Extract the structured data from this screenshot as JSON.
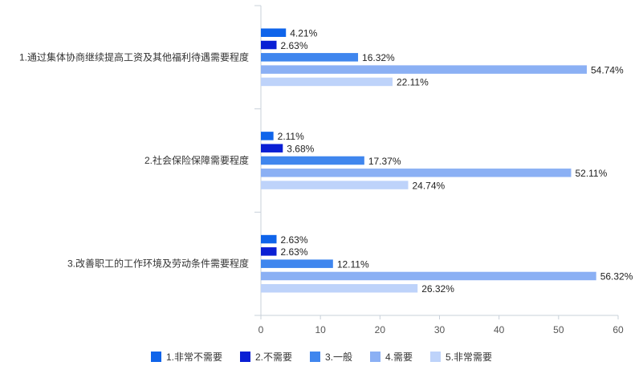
{
  "chart_data": {
    "type": "bar",
    "orientation": "horizontal",
    "categories": [
      "1.通过集体协商继续提高工资及其他福利待遇需要程度",
      "2.社会保险保障需要程度",
      "3.改善职工的工作环境及劳动条件需要程度"
    ],
    "series": [
      {
        "name": "1.非常不需要",
        "color": "#0f64ea",
        "values": [
          4.21,
          2.11,
          2.63
        ]
      },
      {
        "name": "2.不需要",
        "color": "#0a1fd4",
        "values": [
          2.63,
          3.68,
          2.63
        ]
      },
      {
        "name": "3.一般",
        "color": "#3f86ee",
        "values": [
          16.32,
          17.37,
          12.11
        ]
      },
      {
        "name": "4.需要",
        "color": "#8bb0f4",
        "values": [
          54.74,
          52.11,
          56.32
        ]
      },
      {
        "name": "5.非常需要",
        "color": "#bed3fa",
        "values": [
          22.11,
          24.74,
          26.32
        ]
      }
    ],
    "value_suffix": "%",
    "xlim": [
      0,
      60
    ],
    "xticks": [
      0,
      10,
      20,
      30,
      40,
      50,
      60
    ],
    "grid": false,
    "legend_position": "bottom-center"
  }
}
